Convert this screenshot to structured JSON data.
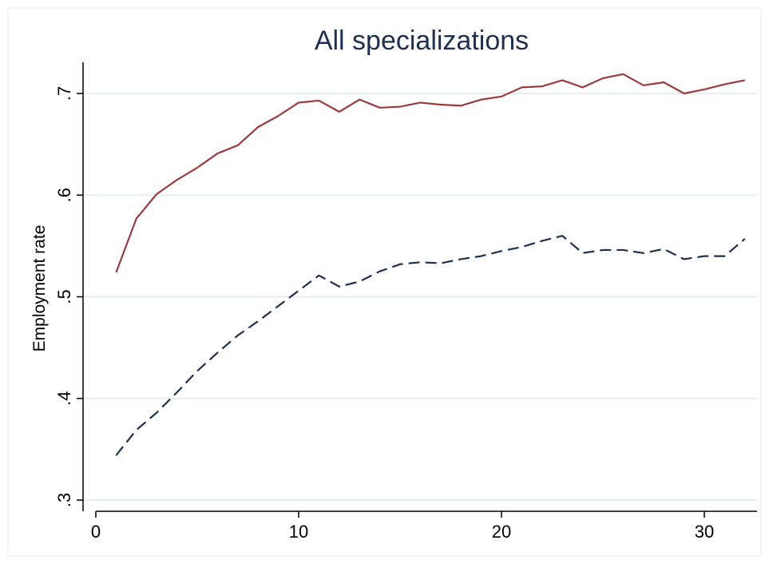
{
  "chart_data": {
    "type": "line",
    "title": "All specializations",
    "xlabel": "",
    "ylabel": "Employment rate",
    "xlim": [
      0,
      32
    ],
    "ylim": [
      0.3,
      0.73
    ],
    "x_ticks": [
      0,
      10,
      20,
      30
    ],
    "x_tick_labels": [
      "0",
      "10",
      "20",
      "30"
    ],
    "y_ticks": [
      0.3,
      0.4,
      0.5,
      0.6,
      0.7
    ],
    "y_tick_labels": [
      ".3",
      ".4",
      ".5",
      ".6",
      ".7"
    ],
    "grid": {
      "horizontal": true,
      "vertical": false
    },
    "x": [
      1,
      2,
      3,
      4,
      5,
      6,
      7,
      8,
      9,
      10,
      11,
      12,
      13,
      14,
      15,
      16,
      17,
      18,
      19,
      20,
      21,
      22,
      23,
      24,
      25,
      26,
      27,
      28,
      29,
      30,
      31,
      32
    ],
    "series": [
      {
        "color": "#9b3b3e",
        "style": "solid",
        "values": [
          0.524,
          0.577,
          0.601,
          0.615,
          0.627,
          0.641,
          0.649,
          0.667,
          0.678,
          0.691,
          0.693,
          0.682,
          0.694,
          0.686,
          0.687,
          0.691,
          0.689,
          0.688,
          0.694,
          0.697,
          0.706,
          0.707,
          0.713,
          0.706,
          0.715,
          0.719,
          0.708,
          0.711,
          0.7,
          0.704,
          0.709,
          0.713
        ]
      },
      {
        "color": "#1f2f4f",
        "style": "dashed",
        "values": [
          0.344,
          0.369,
          0.386,
          0.406,
          0.427,
          0.445,
          0.462,
          0.476,
          0.491,
          0.506,
          0.521,
          0.51,
          0.515,
          0.525,
          0.532,
          0.534,
          0.533,
          0.537,
          0.54,
          0.545,
          0.549,
          0.555,
          0.56,
          0.543,
          0.546,
          0.546,
          0.543,
          0.547,
          0.537,
          0.54,
          0.54,
          0.557
        ]
      }
    ]
  },
  "colors": {
    "background": "#ffffff",
    "grid": "#e6eef2",
    "axis": "#000000",
    "title": "#1f2f4f"
  }
}
